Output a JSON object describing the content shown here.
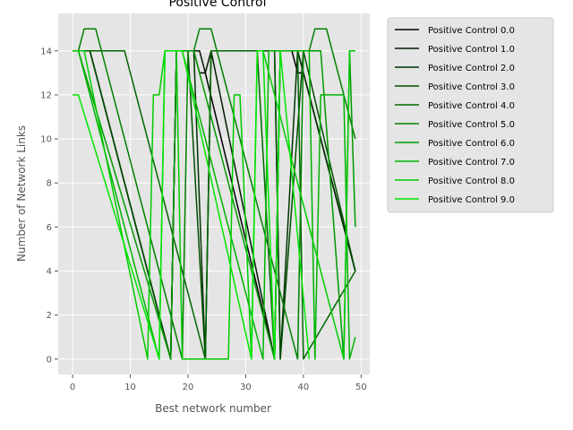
{
  "chart_data": {
    "type": "line",
    "title": "Positive Control",
    "xlabel": "Best network number",
    "ylabel": "Number of Network Links",
    "xlim": [
      -2.5,
      51.5
    ],
    "ylim": [
      -0.7,
      15.7
    ],
    "xticks": [
      0,
      10,
      20,
      30,
      40,
      50
    ],
    "yticks": [
      0,
      2,
      4,
      6,
      8,
      10,
      12,
      14
    ],
    "grid": true,
    "background": "#e5e5e5",
    "legend_position": "outside-right",
    "series": [
      {
        "name": "Positive Control 0.0",
        "color": "#000000",
        "x": [
          0,
          3,
          4,
          17,
          18,
          20,
          21,
          22,
          23,
          35,
          36,
          38,
          39,
          40,
          49
        ],
        "y": [
          14,
          14,
          13,
          0,
          14,
          14,
          14,
          13,
          13,
          0,
          14,
          14,
          13,
          13,
          4
        ]
      },
      {
        "name": "Positive Control 1.0",
        "color": "#001a00",
        "x": [
          0,
          3,
          4,
          17,
          18,
          21,
          22,
          23,
          24,
          35,
          36,
          38,
          39,
          49
        ],
        "y": [
          14,
          14,
          13,
          0,
          14,
          14,
          14,
          13,
          14,
          0,
          14,
          14,
          14,
          4
        ]
      },
      {
        "name": "Positive Control 2.0",
        "color": "#003300",
        "x": [
          0,
          3,
          17,
          18,
          21,
          23,
          24,
          35,
          36,
          39,
          49
        ],
        "y": [
          14,
          14,
          0,
          14,
          14,
          0,
          14,
          14,
          0,
          14,
          4
        ]
      },
      {
        "name": "Positive Control 3.0",
        "color": "#004d00",
        "x": [
          0,
          3,
          17,
          18,
          20,
          23,
          24,
          35,
          36,
          40,
          49
        ],
        "y": [
          14,
          14,
          0,
          14,
          14,
          0,
          14,
          14,
          0,
          14,
          4
        ]
      },
      {
        "name": "Positive Control 4.0",
        "color": "#006600",
        "x": [
          0,
          9,
          23,
          24,
          32,
          35,
          36,
          39,
          40,
          49
        ],
        "y": [
          14,
          14,
          0,
          14,
          14,
          0,
          14,
          14,
          0,
          4
        ]
      },
      {
        "name": "Positive Control 5.0",
        "color": "#008000",
        "x": [
          0,
          1,
          2,
          4,
          19,
          20,
          21,
          22,
          24,
          25,
          39,
          40,
          41,
          42,
          44,
          45,
          49
        ],
        "y": [
          14,
          14,
          15,
          15,
          0,
          14,
          14,
          15,
          15,
          14,
          0,
          14,
          14,
          15,
          15,
          14,
          10
        ]
      },
      {
        "name": "Positive Control 6.0",
        "color": "#009900",
        "x": [
          0,
          1,
          17,
          18,
          21,
          35,
          36,
          43,
          47,
          48,
          49
        ],
        "y": [
          14,
          14,
          0,
          14,
          14,
          0,
          14,
          14,
          0,
          14,
          6
        ]
      },
      {
        "name": "Positive Control 7.0",
        "color": "#00b300",
        "x": [
          0,
          1,
          15,
          16,
          19,
          33,
          34,
          41,
          42,
          43,
          47,
          48,
          49
        ],
        "y": [
          14,
          14,
          0,
          14,
          14,
          0,
          14,
          14,
          0,
          12,
          12,
          0,
          1
        ]
      },
      {
        "name": "Positive Control 8.0",
        "color": "#00cc00",
        "x": [
          0,
          2,
          13,
          14,
          15,
          16,
          17,
          18,
          19,
          27,
          28,
          29,
          31,
          32,
          33,
          47,
          48,
          49
        ],
        "y": [
          14,
          14,
          0,
          12,
          12,
          14,
          14,
          14,
          0,
          0,
          12,
          12,
          0,
          14,
          14,
          0,
          14,
          14
        ]
      },
      {
        "name": "Positive Control 9.0",
        "color": "#00e600",
        "x": [
          0,
          1,
          15,
          16,
          19,
          31,
          32,
          33,
          35,
          36,
          41
        ],
        "y": [
          12,
          12,
          0,
          14,
          14,
          0,
          14,
          14,
          0,
          14,
          0
        ]
      }
    ]
  }
}
